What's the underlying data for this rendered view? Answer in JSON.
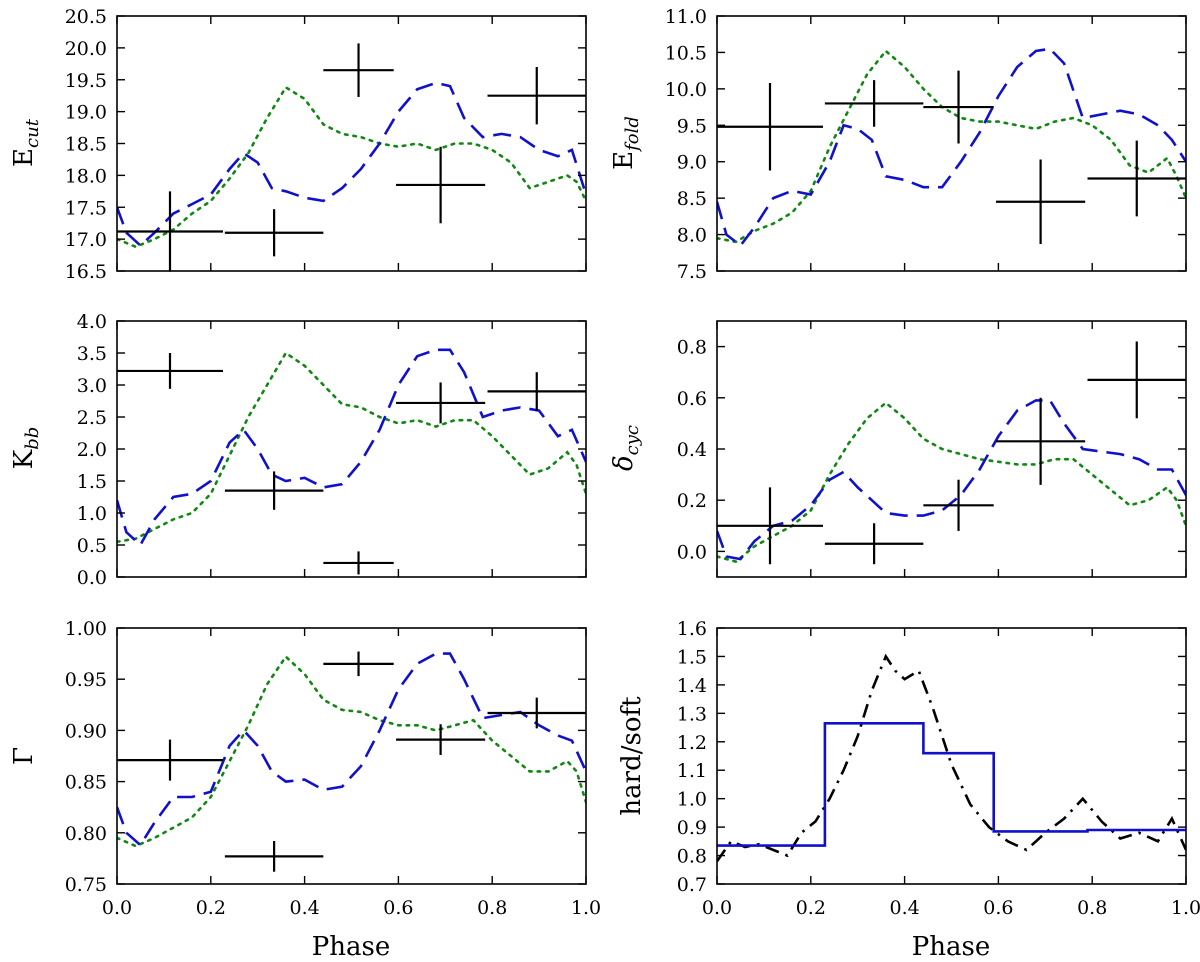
{
  "colors": {
    "green": "#118811",
    "blue": "#1111cc",
    "black": "#000000"
  },
  "chart_data": [
    {
      "type": "line",
      "ylabel_main": "E",
      "ylabel_sub": "cut",
      "xlabel": "",
      "xlim": [
        0,
        1
      ],
      "ylim": [
        16.5,
        20.5
      ],
      "xticks": [
        0.0,
        0.2,
        0.4,
        0.6,
        0.8,
        1.0
      ],
      "yticks": [
        "16.5",
        "17.0",
        "17.5",
        "18.0",
        "18.5",
        "19.0",
        "19.5",
        "20.0",
        "20.5"
      ],
      "series": [
        {
          "name": "dotted-green",
          "x": [
            0,
            0.04,
            0.08,
            0.12,
            0.16,
            0.2,
            0.24,
            0.28,
            0.32,
            0.36,
            0.4,
            0.44,
            0.48,
            0.52,
            0.56,
            0.6,
            0.64,
            0.68,
            0.72,
            0.76,
            0.8,
            0.84,
            0.88,
            0.92,
            0.96,
            0.98,
            1.0
          ],
          "y": [
            17.0,
            16.88,
            17.0,
            17.15,
            17.4,
            17.6,
            17.95,
            18.35,
            18.9,
            19.38,
            19.2,
            18.8,
            18.65,
            18.6,
            18.5,
            18.45,
            18.5,
            18.4,
            18.5,
            18.5,
            18.4,
            18.2,
            17.8,
            17.9,
            18.0,
            17.9,
            17.6
          ]
        },
        {
          "name": "dashed-blue",
          "x": [
            0,
            0.02,
            0.05,
            0.08,
            0.12,
            0.16,
            0.2,
            0.24,
            0.27,
            0.3,
            0.33,
            0.36,
            0.4,
            0.44,
            0.48,
            0.52,
            0.56,
            0.6,
            0.64,
            0.68,
            0.71,
            0.74,
            0.78,
            0.82,
            0.86,
            0.9,
            0.94,
            0.97,
            1.0
          ],
          "y": [
            17.5,
            17.1,
            16.9,
            17.1,
            17.4,
            17.55,
            17.7,
            18.1,
            18.35,
            18.2,
            17.8,
            17.75,
            17.65,
            17.6,
            17.8,
            18.1,
            18.5,
            19.0,
            19.35,
            19.45,
            19.4,
            18.9,
            18.6,
            18.65,
            18.6,
            18.4,
            18.3,
            18.4,
            17.7
          ]
        }
      ],
      "errorbars": [
        {
          "x": 0.113,
          "y": 17.12,
          "xerr": 0.113,
          "yerr": 0.63
        },
        {
          "x": 0.335,
          "y": 17.1,
          "xerr": 0.105,
          "yerr": 0.37
        },
        {
          "x": 0.515,
          "y": 19.65,
          "xerr": 0.075,
          "yerr": 0.42
        },
        {
          "x": 0.69,
          "y": 17.85,
          "xerr": 0.095,
          "yerr": 0.6
        },
        {
          "x": 0.895,
          "y": 19.25,
          "xerr": 0.105,
          "yerr": 0.45
        }
      ]
    },
    {
      "type": "line",
      "ylabel_main": "E",
      "ylabel_sub": "fold",
      "xlabel": "",
      "xlim": [
        0,
        1
      ],
      "ylim": [
        7.5,
        11.0
      ],
      "xticks": [
        0.0,
        0.2,
        0.4,
        0.6,
        0.8,
        1.0
      ],
      "yticks": [
        "7.5",
        "8.0",
        "8.5",
        "9.0",
        "9.5",
        "10.0",
        "10.5",
        "11.0"
      ],
      "series": [
        {
          "name": "dotted-green",
          "x": [
            0,
            0.04,
            0.08,
            0.12,
            0.16,
            0.2,
            0.24,
            0.28,
            0.32,
            0.36,
            0.4,
            0.44,
            0.48,
            0.52,
            0.56,
            0.6,
            0.64,
            0.68,
            0.72,
            0.76,
            0.8,
            0.84,
            0.88,
            0.92,
            0.96,
            0.98,
            1.0
          ],
          "y": [
            7.95,
            7.9,
            8.05,
            8.15,
            8.3,
            8.6,
            9.2,
            9.7,
            10.2,
            10.52,
            10.3,
            10.0,
            9.75,
            9.6,
            9.55,
            9.55,
            9.5,
            9.45,
            9.55,
            9.6,
            9.5,
            9.3,
            8.95,
            8.85,
            9.05,
            8.8,
            8.5
          ]
        },
        {
          "name": "dashed-blue",
          "x": [
            0,
            0.02,
            0.05,
            0.08,
            0.12,
            0.16,
            0.2,
            0.24,
            0.27,
            0.3,
            0.33,
            0.36,
            0.4,
            0.44,
            0.48,
            0.52,
            0.56,
            0.6,
            0.64,
            0.68,
            0.71,
            0.74,
            0.78,
            0.82,
            0.86,
            0.9,
            0.94,
            0.97,
            1.0
          ],
          "y": [
            8.45,
            8.0,
            7.85,
            8.1,
            8.5,
            8.6,
            8.55,
            9.0,
            9.5,
            9.45,
            9.3,
            8.8,
            8.75,
            8.65,
            8.65,
            9.0,
            9.4,
            9.9,
            10.3,
            10.52,
            10.55,
            10.35,
            9.6,
            9.65,
            9.7,
            9.65,
            9.5,
            9.3,
            9.0
          ]
        }
      ],
      "errorbars": [
        {
          "x": 0.113,
          "y": 9.48,
          "xerr": 0.113,
          "yerr": 0.6
        },
        {
          "x": 0.335,
          "y": 9.8,
          "xerr": 0.105,
          "yerr": 0.32
        },
        {
          "x": 0.515,
          "y": 9.75,
          "xerr": 0.075,
          "yerr": 0.5
        },
        {
          "x": 0.69,
          "y": 8.45,
          "xerr": 0.095,
          "yerr": 0.58
        },
        {
          "x": 0.895,
          "y": 8.77,
          "xerr": 0.105,
          "yerr": 0.52
        }
      ]
    },
    {
      "type": "line",
      "ylabel_main": "K",
      "ylabel_sub": "bb",
      "xlabel": "",
      "xlim": [
        0,
        1
      ],
      "ylim": [
        0.0,
        4.0
      ],
      "xticks": [
        0.0,
        0.2,
        0.4,
        0.6,
        0.8,
        1.0
      ],
      "yticks": [
        "0.0",
        "0.5",
        "1.0",
        "1.5",
        "2.0",
        "2.5",
        "3.0",
        "3.5",
        "4.0"
      ],
      "series": [
        {
          "name": "dotted-green",
          "x": [
            0,
            0.04,
            0.08,
            0.12,
            0.16,
            0.2,
            0.24,
            0.28,
            0.32,
            0.36,
            0.4,
            0.44,
            0.48,
            0.52,
            0.56,
            0.6,
            0.64,
            0.68,
            0.72,
            0.76,
            0.8,
            0.84,
            0.88,
            0.92,
            0.96,
            0.98,
            1.0
          ],
          "y": [
            0.55,
            0.6,
            0.75,
            0.9,
            1.0,
            1.3,
            1.9,
            2.5,
            3.0,
            3.5,
            3.3,
            3.0,
            2.7,
            2.65,
            2.5,
            2.4,
            2.45,
            2.35,
            2.45,
            2.45,
            2.2,
            1.9,
            1.6,
            1.7,
            1.95,
            1.75,
            1.3
          ]
        },
        {
          "name": "dashed-blue",
          "x": [
            0,
            0.02,
            0.05,
            0.08,
            0.12,
            0.16,
            0.2,
            0.24,
            0.27,
            0.3,
            0.33,
            0.36,
            0.4,
            0.44,
            0.48,
            0.52,
            0.56,
            0.6,
            0.64,
            0.68,
            0.71,
            0.74,
            0.78,
            0.82,
            0.86,
            0.9,
            0.94,
            0.97,
            1.0
          ],
          "y": [
            1.2,
            0.7,
            0.5,
            0.9,
            1.25,
            1.3,
            1.5,
            2.1,
            2.3,
            2.0,
            1.6,
            1.5,
            1.55,
            1.4,
            1.45,
            1.8,
            2.3,
            3.0,
            3.45,
            3.55,
            3.55,
            3.2,
            2.5,
            2.6,
            2.65,
            2.6,
            2.2,
            2.3,
            1.8
          ]
        }
      ],
      "errorbars": [
        {
          "x": 0.113,
          "y": 3.22,
          "xerr": 0.113,
          "yerr": 0.28
        },
        {
          "x": 0.335,
          "y": 1.35,
          "xerr": 0.105,
          "yerr": 0.3
        },
        {
          "x": 0.515,
          "y": 0.22,
          "xerr": 0.075,
          "yerr": 0.18
        },
        {
          "x": 0.69,
          "y": 2.72,
          "xerr": 0.095,
          "yerr": 0.32
        },
        {
          "x": 0.895,
          "y": 2.9,
          "xerr": 0.105,
          "yerr": 0.3
        }
      ]
    },
    {
      "type": "line",
      "ylabel_main": "δ",
      "ylabel_sub": "cyc",
      "xlabel": "",
      "xlim": [
        0,
        1
      ],
      "ylim": [
        -0.1,
        0.9
      ],
      "xticks": [
        0.0,
        0.2,
        0.4,
        0.6,
        0.8,
        1.0
      ],
      "yticks": [
        "0.0",
        "0.2",
        "0.4",
        "0.6",
        "0.8"
      ],
      "ytick_values": [
        0.0,
        0.2,
        0.4,
        0.6,
        0.8
      ],
      "series": [
        {
          "name": "dotted-green",
          "x": [
            0,
            0.04,
            0.08,
            0.12,
            0.16,
            0.2,
            0.24,
            0.28,
            0.32,
            0.36,
            0.4,
            0.44,
            0.48,
            0.52,
            0.56,
            0.6,
            0.64,
            0.68,
            0.72,
            0.76,
            0.8,
            0.84,
            0.88,
            0.92,
            0.96,
            0.98,
            1.0
          ],
          "y": [
            -0.02,
            -0.04,
            0.02,
            0.06,
            0.1,
            0.16,
            0.3,
            0.42,
            0.52,
            0.58,
            0.52,
            0.44,
            0.4,
            0.38,
            0.36,
            0.35,
            0.34,
            0.34,
            0.36,
            0.36,
            0.3,
            0.24,
            0.18,
            0.2,
            0.25,
            0.2,
            0.1
          ]
        },
        {
          "name": "dashed-blue",
          "x": [
            0,
            0.02,
            0.05,
            0.08,
            0.12,
            0.16,
            0.2,
            0.24,
            0.27,
            0.3,
            0.33,
            0.36,
            0.4,
            0.44,
            0.48,
            0.52,
            0.56,
            0.6,
            0.64,
            0.68,
            0.71,
            0.74,
            0.78,
            0.82,
            0.86,
            0.9,
            0.94,
            0.97,
            1.0
          ],
          "y": [
            0.08,
            -0.02,
            -0.03,
            0.04,
            0.1,
            0.12,
            0.18,
            0.28,
            0.31,
            0.25,
            0.2,
            0.15,
            0.14,
            0.14,
            0.16,
            0.22,
            0.32,
            0.45,
            0.55,
            0.59,
            0.59,
            0.5,
            0.4,
            0.39,
            0.38,
            0.36,
            0.32,
            0.32,
            0.22
          ]
        }
      ],
      "errorbars": [
        {
          "x": 0.113,
          "y": 0.1,
          "xerr": 0.113,
          "yerr": 0.15
        },
        {
          "x": 0.335,
          "y": 0.03,
          "xerr": 0.105,
          "yerr": 0.08
        },
        {
          "x": 0.515,
          "y": 0.18,
          "xerr": 0.075,
          "yerr": 0.1
        },
        {
          "x": 0.69,
          "y": 0.43,
          "xerr": 0.095,
          "yerr": 0.17
        },
        {
          "x": 0.895,
          "y": 0.67,
          "xerr": 0.105,
          "yerr": 0.15
        }
      ]
    },
    {
      "type": "line",
      "ylabel_main": "Γ",
      "ylabel_sub": "",
      "xlabel": "Phase",
      "xlim": [
        0,
        1
      ],
      "ylim": [
        0.75,
        1.0
      ],
      "xticks": [
        0.0,
        0.2,
        0.4,
        0.6,
        0.8,
        1.0
      ],
      "xticklabels": [
        "0.0",
        "0.2",
        "0.4",
        "0.6",
        "0.8",
        "1.0"
      ],
      "yticks": [
        "0.75",
        "0.80",
        "0.85",
        "0.90",
        "0.95",
        "1.00"
      ],
      "series": [
        {
          "name": "dotted-green",
          "x": [
            0,
            0.04,
            0.08,
            0.12,
            0.16,
            0.2,
            0.24,
            0.28,
            0.32,
            0.36,
            0.4,
            0.44,
            0.48,
            0.52,
            0.56,
            0.6,
            0.64,
            0.68,
            0.72,
            0.76,
            0.8,
            0.84,
            0.88,
            0.92,
            0.96,
            0.98,
            1.0
          ],
          "y": [
            0.795,
            0.787,
            0.795,
            0.805,
            0.815,
            0.835,
            0.87,
            0.905,
            0.945,
            0.972,
            0.955,
            0.93,
            0.92,
            0.918,
            0.91,
            0.905,
            0.905,
            0.9,
            0.905,
            0.91,
            0.89,
            0.875,
            0.86,
            0.86,
            0.87,
            0.86,
            0.83
          ]
        },
        {
          "name": "dashed-blue",
          "x": [
            0,
            0.02,
            0.05,
            0.08,
            0.12,
            0.16,
            0.2,
            0.24,
            0.27,
            0.3,
            0.33,
            0.36,
            0.4,
            0.44,
            0.48,
            0.52,
            0.56,
            0.6,
            0.64,
            0.68,
            0.71,
            0.74,
            0.78,
            0.82,
            0.86,
            0.9,
            0.94,
            0.97,
            1.0
          ],
          "y": [
            0.825,
            0.8,
            0.788,
            0.81,
            0.835,
            0.835,
            0.84,
            0.885,
            0.9,
            0.885,
            0.86,
            0.85,
            0.852,
            0.842,
            0.845,
            0.865,
            0.9,
            0.94,
            0.965,
            0.975,
            0.975,
            0.95,
            0.912,
            0.915,
            0.918,
            0.905,
            0.895,
            0.89,
            0.86
          ]
        }
      ],
      "errorbars": [
        {
          "x": 0.113,
          "y": 0.871,
          "xerr": 0.113,
          "yerr": 0.02
        },
        {
          "x": 0.335,
          "y": 0.777,
          "xerr": 0.105,
          "yerr": 0.015
        },
        {
          "x": 0.515,
          "y": 0.965,
          "xerr": 0.075,
          "yerr": 0.012
        },
        {
          "x": 0.69,
          "y": 0.891,
          "xerr": 0.095,
          "yerr": 0.015
        },
        {
          "x": 0.895,
          "y": 0.917,
          "xerr": 0.105,
          "yerr": 0.015
        }
      ]
    },
    {
      "type": "line",
      "ylabel_main": "hard/soft",
      "ylabel_sub": "",
      "xlabel": "Phase",
      "xlim": [
        0,
        1
      ],
      "ylim": [
        0.7,
        1.6
      ],
      "xticks": [
        0.0,
        0.2,
        0.4,
        0.6,
        0.8,
        1.0
      ],
      "xticklabels": [
        "0.0",
        "0.2",
        "0.4",
        "0.6",
        "0.8",
        "1.0"
      ],
      "yticks": [
        "0.7",
        "0.8",
        "0.9",
        "1.0",
        "1.1",
        "1.2",
        "1.3",
        "1.4",
        "1.5",
        "1.6"
      ],
      "series": [
        {
          "name": "dashdot-black",
          "x": [
            0,
            0.03,
            0.06,
            0.09,
            0.12,
            0.15,
            0.18,
            0.21,
            0.24,
            0.27,
            0.3,
            0.33,
            0.36,
            0.38,
            0.4,
            0.43,
            0.46,
            0.5,
            0.54,
            0.58,
            0.62,
            0.66,
            0.7,
            0.74,
            0.78,
            0.82,
            0.86,
            0.9,
            0.94,
            0.97,
            1.0
          ],
          "y": [
            0.78,
            0.85,
            0.83,
            0.84,
            0.82,
            0.8,
            0.88,
            0.92,
            1.0,
            1.1,
            1.22,
            1.38,
            1.5,
            1.45,
            1.42,
            1.45,
            1.32,
            1.12,
            0.98,
            0.9,
            0.85,
            0.82,
            0.88,
            0.93,
            1.0,
            0.92,
            0.86,
            0.88,
            0.85,
            0.93,
            0.82
          ]
        }
      ],
      "steps": {
        "name": "solid-blue",
        "edges": [
          0.0,
          0.23,
          0.44,
          0.59,
          0.79,
          1.0
        ],
        "values": [
          0.835,
          1.265,
          1.16,
          0.885,
          0.89
        ]
      }
    }
  ]
}
